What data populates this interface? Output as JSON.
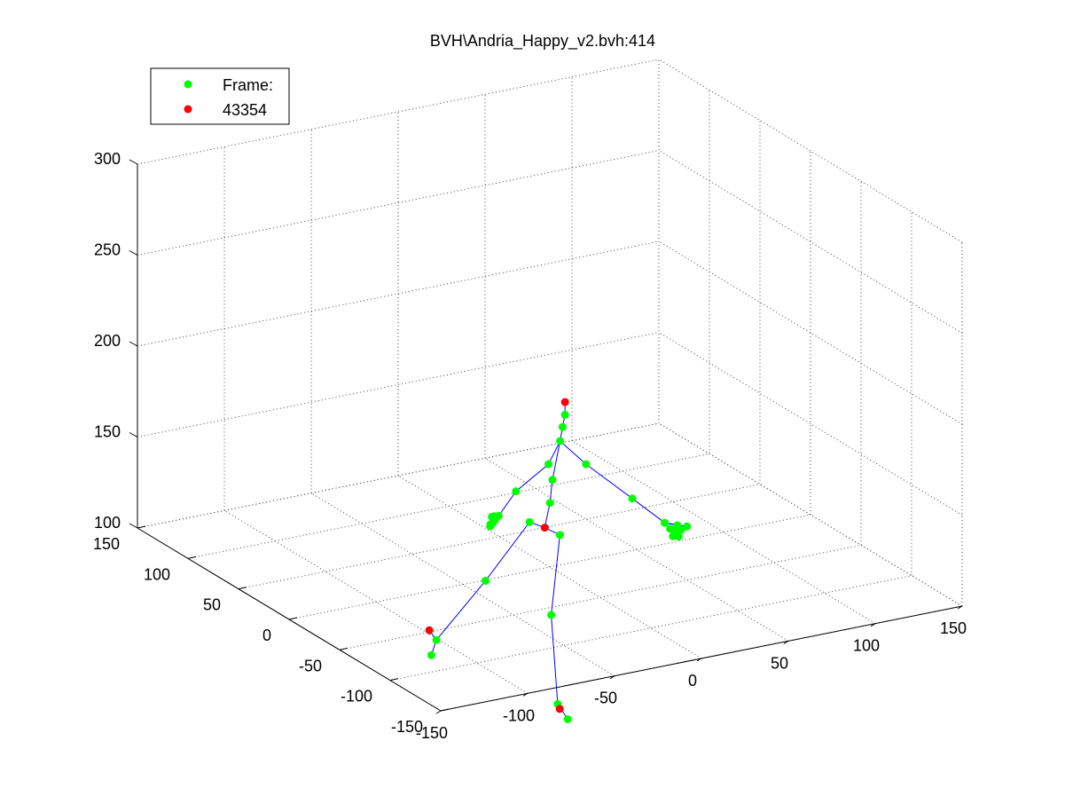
{
  "chart_data": {
    "type": "scatter",
    "title": "BVH\\Andria_Happy_v2.bvh:414",
    "legend": {
      "placement": "top-left",
      "entries": [
        {
          "label": "Frame:",
          "color": "#00ff00"
        },
        {
          "label": "43354",
          "color": "#ff0000"
        }
      ]
    },
    "axes": {
      "x": {
        "range": [
          -150,
          150
        ],
        "ticks": [
          -150,
          -100,
          -50,
          0,
          50,
          100,
          150
        ]
      },
      "y": {
        "range": [
          -150,
          150
        ],
        "ticks": [
          -150,
          -100,
          -50,
          0,
          50,
          100,
          150
        ]
      },
      "z": {
        "range": [
          100,
          300
        ],
        "ticks": [
          100,
          150,
          200,
          250,
          300
        ]
      },
      "grid": true
    },
    "colors": {
      "joint": "#00ff00",
      "end_effector": "#ff0000",
      "bone": "#0000ff"
    },
    "joints": [
      {
        "id": "root",
        "x": 0,
        "y": 5,
        "z": 120
      },
      {
        "id": "spine",
        "x": 3,
        "y": 5,
        "z": 133
      },
      {
        "id": "spine1",
        "x": 5,
        "y": 6,
        "z": 145
      },
      {
        "id": "neck",
        "x": 10,
        "y": 7,
        "z": 165
      },
      {
        "id": "neck1",
        "x": 12,
        "y": 8,
        "z": 172
      },
      {
        "id": "head",
        "x": 14,
        "y": 9,
        "z": 178
      },
      {
        "id": "head-end",
        "x": 14,
        "y": 9,
        "z": 185
      },
      {
        "id": "lhip",
        "x": 0,
        "y": 20,
        "z": 118
      },
      {
        "id": "lknee",
        "x": -5,
        "y": 55,
        "z": 75
      },
      {
        "id": "lankle",
        "x": -10,
        "y": 95,
        "z": 30
      },
      {
        "id": "ltoe",
        "x": -10,
        "y": 100,
        "z": 20
      },
      {
        "id": "ltoe-end",
        "x": -10,
        "y": 102,
        "z": 33
      },
      {
        "id": "rhip",
        "x": 0,
        "y": -10,
        "z": 121
      },
      {
        "id": "rknee",
        "x": -5,
        "y": -10,
        "z": 78
      },
      {
        "id": "rankle",
        "x": -10,
        "y": -25,
        "z": 35
      },
      {
        "id": "rtoe",
        "x": -10,
        "y": -35,
        "z": 30
      },
      {
        "id": "rtoe-end",
        "x": -10,
        "y": -27,
        "z": 33
      },
      {
        "id": "lshoulder",
        "x": 8,
        "y": 15,
        "z": 150
      },
      {
        "id": "lelbow",
        "x": -2,
        "y": 30,
        "z": 132
      },
      {
        "id": "lwrist",
        "x": -5,
        "y": 42,
        "z": 115
      },
      {
        "id": "lhand1",
        "x": -6,
        "y": 44,
        "z": 112
      },
      {
        "id": "lhand2",
        "x": -7,
        "y": 45,
        "z": 110
      },
      {
        "id": "lhand3",
        "x": -5,
        "y": 46,
        "z": 112
      },
      {
        "id": "lhand4",
        "x": -7,
        "y": 47,
        "z": 108
      },
      {
        "id": "lhand5",
        "x": -6,
        "y": 45,
        "z": 114
      },
      {
        "id": "lhand6",
        "x": -8,
        "y": 45,
        "z": 110
      },
      {
        "id": "lhand7",
        "x": -6,
        "y": 47,
        "z": 113
      },
      {
        "id": "rshoulder",
        "x": 15,
        "y": -10,
        "z": 157
      },
      {
        "id": "relbow",
        "x": 30,
        "y": -30,
        "z": 142
      },
      {
        "id": "rwrist",
        "x": 37,
        "y": -50,
        "z": 134
      },
      {
        "id": "rhand1",
        "x": 39,
        "y": -52,
        "z": 131
      },
      {
        "id": "rhand2",
        "x": 40,
        "y": -55,
        "z": 130
      },
      {
        "id": "rhand3",
        "x": 42,
        "y": -54,
        "z": 133
      },
      {
        "id": "rhand4",
        "x": 41,
        "y": -57,
        "z": 128
      },
      {
        "id": "rhand5",
        "x": 40,
        "y": -53,
        "z": 127
      },
      {
        "id": "rhand6",
        "x": 43,
        "y": -56,
        "z": 131
      },
      {
        "id": "rhand7",
        "x": 42,
        "y": -52,
        "z": 129
      },
      {
        "id": "rhand8",
        "x": 44,
        "y": -60,
        "z": 134
      },
      {
        "id": "rhand9",
        "x": 40,
        "y": -58,
        "z": 132
      }
    ],
    "end_effectors": [
      "head-end",
      "ltoe-end",
      "rtoe-end",
      "root"
    ],
    "bones": [
      [
        "root",
        "spine"
      ],
      [
        "spine",
        "spine1"
      ],
      [
        "spine1",
        "neck"
      ],
      [
        "neck",
        "neck1"
      ],
      [
        "neck1",
        "head"
      ],
      [
        "head",
        "head-end"
      ],
      [
        "root",
        "lhip"
      ],
      [
        "lhip",
        "lknee"
      ],
      [
        "lknee",
        "lankle"
      ],
      [
        "lankle",
        "ltoe"
      ],
      [
        "lankle",
        "ltoe-end"
      ],
      [
        "root",
        "rhip"
      ],
      [
        "rhip",
        "rknee"
      ],
      [
        "rknee",
        "rankle"
      ],
      [
        "rankle",
        "rtoe"
      ],
      [
        "rankle",
        "rtoe-end"
      ],
      [
        "neck",
        "lshoulder"
      ],
      [
        "lshoulder",
        "lelbow"
      ],
      [
        "lelbow",
        "lwrist"
      ],
      [
        "lwrist",
        "lhand1"
      ],
      [
        "lwrist",
        "lhand2"
      ],
      [
        "lwrist",
        "lhand3"
      ],
      [
        "lwrist",
        "lhand4"
      ],
      [
        "neck",
        "rshoulder"
      ],
      [
        "rshoulder",
        "relbow"
      ],
      [
        "relbow",
        "rwrist"
      ],
      [
        "rwrist",
        "rhand1"
      ],
      [
        "rwrist",
        "rhand3"
      ],
      [
        "rwrist",
        "rhand8"
      ]
    ]
  }
}
